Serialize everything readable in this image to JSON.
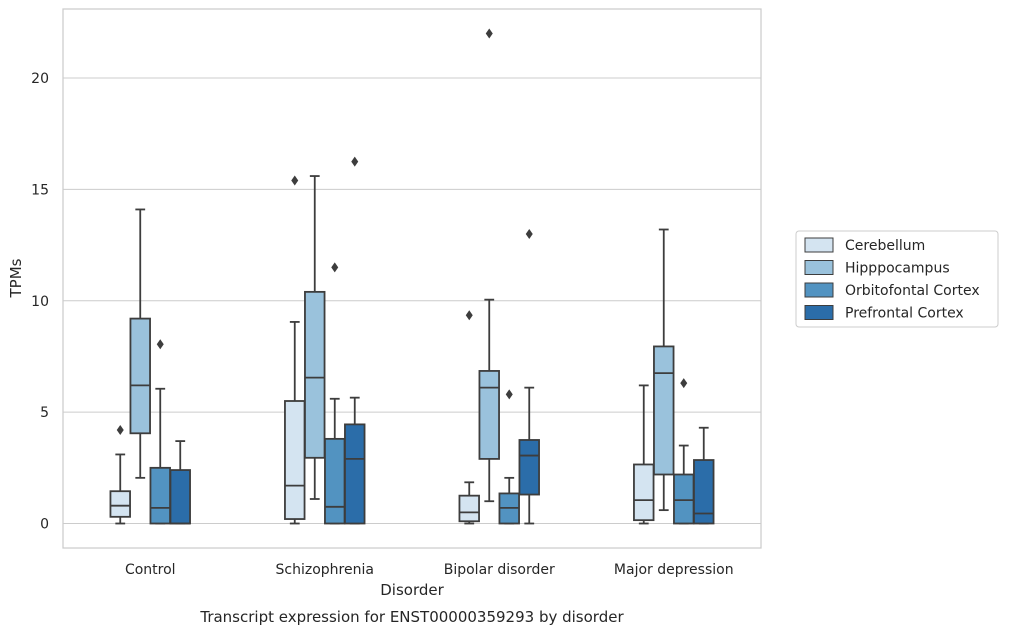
{
  "chart_data": {
    "type": "box",
    "title": "",
    "caption": "Transcript expression for ENST00000359293 by disorder",
    "xlabel": "Disorder",
    "ylabel": "TPMs",
    "ylim": [
      -1.1,
      23.1
    ],
    "yticks": [
      0,
      5,
      10,
      15,
      20
    ],
    "grid": "horizontal",
    "legend_position": "right",
    "categories": [
      "Control",
      "Schizophrenia",
      "Bipolar disorder",
      "Major depression"
    ],
    "series": [
      {
        "name": "Cerebellum",
        "color": "#d4e4f1",
        "boxes": [
          {
            "whislo": 0.0,
            "q1": 0.3,
            "med": 0.8,
            "q3": 1.45,
            "whishi": 3.1,
            "fliers": [
              4.2
            ]
          },
          {
            "whislo": 0.0,
            "q1": 0.2,
            "med": 1.7,
            "q3": 5.5,
            "whishi": 9.05,
            "fliers": [
              15.4
            ]
          },
          {
            "whislo": 0.0,
            "q1": 0.1,
            "med": 0.5,
            "q3": 1.25,
            "whishi": 1.85,
            "fliers": [
              9.35
            ]
          },
          {
            "whislo": 0.0,
            "q1": 0.15,
            "med": 1.05,
            "q3": 2.65,
            "whishi": 6.2,
            "fliers": []
          }
        ]
      },
      {
        "name": "Hipppocampus",
        "color": "#9ac2dc",
        "boxes": [
          {
            "whislo": 2.05,
            "q1": 4.05,
            "med": 6.2,
            "q3": 9.2,
            "whishi": 14.1,
            "fliers": []
          },
          {
            "whislo": 1.1,
            "q1": 2.95,
            "med": 6.55,
            "q3": 10.4,
            "whishi": 15.6,
            "fliers": []
          },
          {
            "whislo": 1.0,
            "q1": 2.9,
            "med": 6.1,
            "q3": 6.85,
            "whishi": 10.05,
            "fliers": [
              22.0
            ]
          },
          {
            "whislo": 0.6,
            "q1": 2.2,
            "med": 6.75,
            "q3": 7.95,
            "whishi": 13.2,
            "fliers": []
          }
        ]
      },
      {
        "name": "Orbitofontal Cortex",
        "color": "#5293c1",
        "boxes": [
          {
            "whislo": 0.0,
            "q1": 0.0,
            "med": 0.7,
            "q3": 2.5,
            "whishi": 6.05,
            "fliers": [
              8.05
            ]
          },
          {
            "whislo": 0.0,
            "q1": 0.0,
            "med": 0.75,
            "q3": 3.8,
            "whishi": 5.6,
            "fliers": [
              11.5
            ]
          },
          {
            "whislo": 0.0,
            "q1": 0.0,
            "med": 0.7,
            "q3": 1.35,
            "whishi": 2.05,
            "fliers": [
              5.8
            ]
          },
          {
            "whislo": 0.0,
            "q1": 0.0,
            "med": 1.05,
            "q3": 2.2,
            "whishi": 3.5,
            "fliers": [
              6.3
            ]
          }
        ]
      },
      {
        "name": "Prefrontal Cortex",
        "color": "#2b6da9",
        "boxes": [
          {
            "whislo": 0.0,
            "q1": 0.0,
            "med": 0.0,
            "q3": 2.4,
            "whishi": 3.7,
            "fliers": []
          },
          {
            "whislo": 0.0,
            "q1": 0.0,
            "med": 2.9,
            "q3": 4.45,
            "whishi": 5.65,
            "fliers": [
              16.25
            ]
          },
          {
            "whislo": 0.0,
            "q1": 1.3,
            "med": 3.05,
            "q3": 3.75,
            "whishi": 6.1,
            "fliers": [
              13.0
            ]
          },
          {
            "whislo": 0.0,
            "q1": 0.0,
            "med": 0.45,
            "q3": 2.85,
            "whishi": 4.3,
            "fliers": []
          }
        ]
      }
    ]
  }
}
